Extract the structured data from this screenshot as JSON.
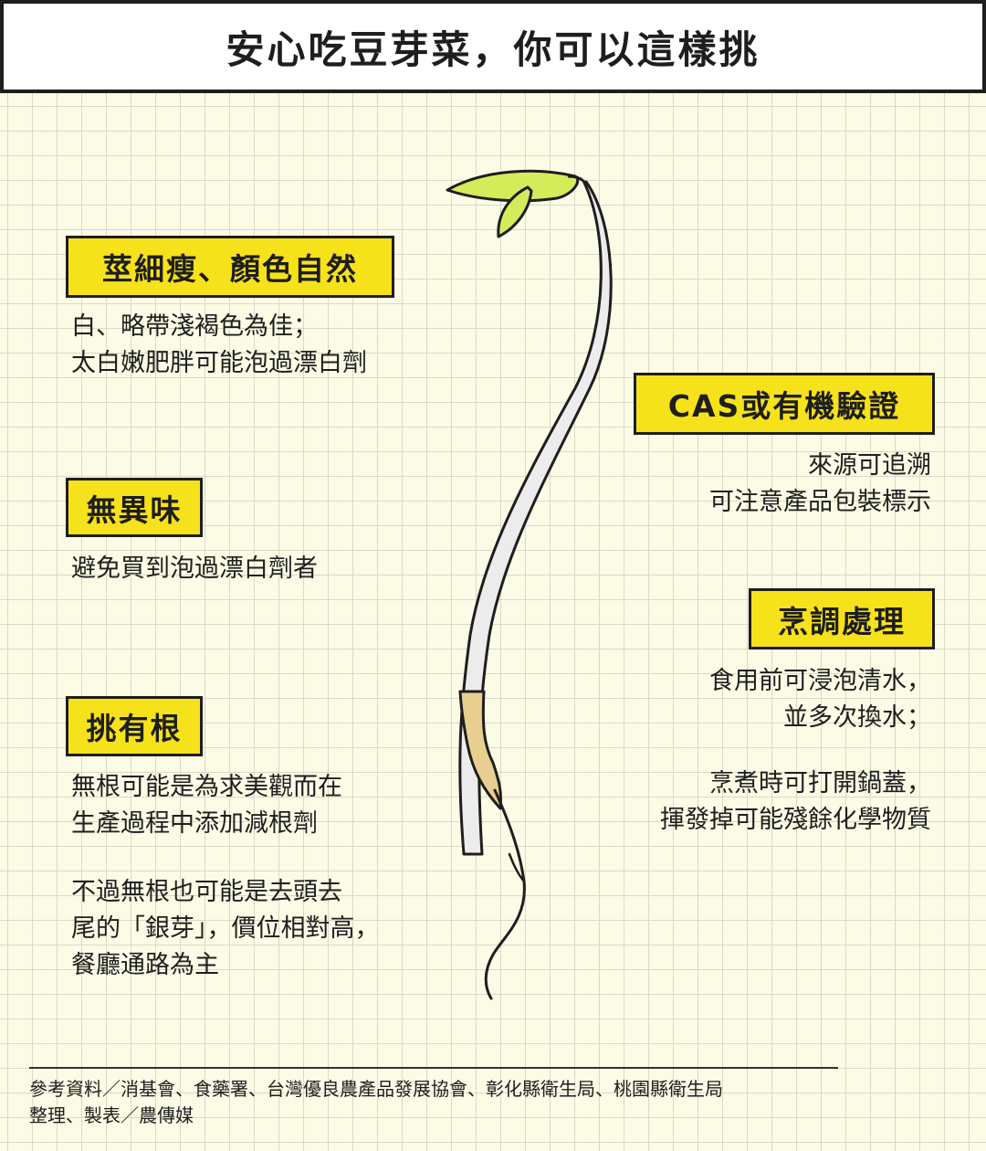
{
  "title": "安心吃豆芽菜，你可以這樣挑",
  "sections": {
    "stem": {
      "heading": "莖細瘦、顏色自然",
      "text": "白、略帶淺褐色為佳；\n太白嫩肥胖可能泡過漂白劑"
    },
    "smell": {
      "heading": "無異味",
      "text": "避免買到泡過漂白劑者"
    },
    "root": {
      "heading": "挑有根",
      "text1": "無根可能是為求美觀而在\n生產過程中添加減根劑",
      "text2": "不過無根也可能是去頭去\n尾的「銀芽」，價位相對高，\n餐廳通路為主"
    },
    "cert": {
      "heading": "CAS或有機驗證",
      "text": "來源可追溯\n可注意產品包裝標示"
    },
    "cook": {
      "heading": "烹調處理",
      "text1": "食用前可浸泡清水，\n並多次換水；",
      "text2": "烹煮時可打開鍋蓋，\n揮發掉可能殘餘化學物質"
    }
  },
  "footer": {
    "references": "參考資料／消基會、食藥署、台灣優良農產品發展協會、彰化縣衛生局、桃園縣衛生局",
    "credit": "整理、製表／農傳媒"
  },
  "colors": {
    "background": "#fbfbe6",
    "tag_yellow": "#f6e21a",
    "leaf_green": "#d4ec5a",
    "root_tan": "#e9cf8f",
    "stem": "#ececec"
  },
  "illustration": "bean-sprout-icon"
}
